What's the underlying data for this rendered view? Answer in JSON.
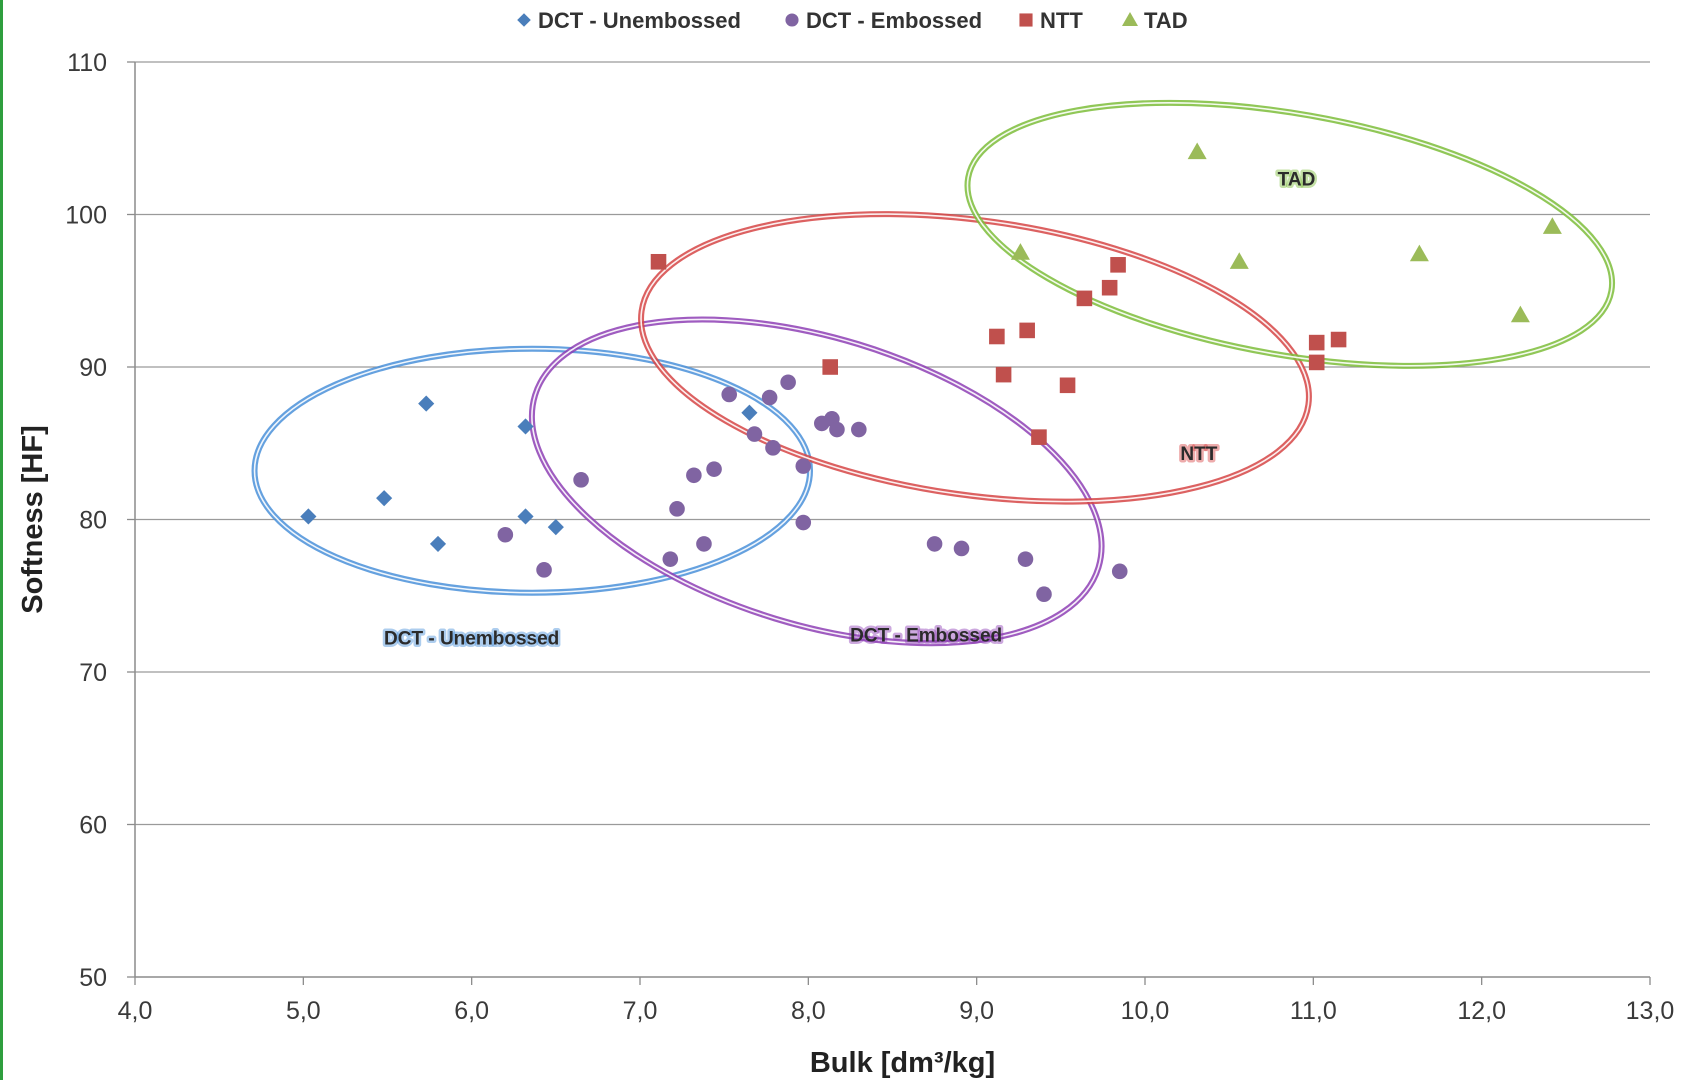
{
  "chart_data": {
    "type": "scatter",
    "xlabel": "Bulk [dm³/kg]",
    "ylabel": "Softness [HF]",
    "xlim": [
      4.0,
      13.0
    ],
    "ylim": [
      50,
      110
    ],
    "x_ticks": [
      "4,0",
      "5,0",
      "6,0",
      "7,0",
      "8,0",
      "9,0",
      "10,0",
      "11,0",
      "12,0",
      "13,0"
    ],
    "y_ticks": [
      "50",
      "60",
      "70",
      "80",
      "90",
      "100",
      "110"
    ],
    "x_tick_values": [
      4,
      5,
      6,
      7,
      8,
      9,
      10,
      11,
      12,
      13
    ],
    "y_tick_values": [
      50,
      60,
      70,
      80,
      90,
      100,
      110
    ],
    "grid": "horizontal",
    "legend_position": "top",
    "series": [
      {
        "name": "DCT - Unembossed",
        "marker": "diamond",
        "color": "#4a7ebb",
        "points": [
          [
            5.03,
            80.2
          ],
          [
            5.48,
            81.4
          ],
          [
            5.73,
            87.6
          ],
          [
            5.8,
            78.4
          ],
          [
            6.32,
            86.1
          ],
          [
            6.32,
            80.2
          ],
          [
            6.5,
            79.5
          ],
          [
            7.65,
            87.0
          ]
        ]
      },
      {
        "name": "DCT - Embossed",
        "marker": "circle",
        "color": "#8064a2",
        "points": [
          [
            6.2,
            79.0
          ],
          [
            6.43,
            76.7
          ],
          [
            6.65,
            82.6
          ],
          [
            7.18,
            77.4
          ],
          [
            7.22,
            80.7
          ],
          [
            7.32,
            82.9
          ],
          [
            7.38,
            78.4
          ],
          [
            7.44,
            83.3
          ],
          [
            7.53,
            88.2
          ],
          [
            7.68,
            85.6
          ],
          [
            7.77,
            88.0
          ],
          [
            7.79,
            84.7
          ],
          [
            7.88,
            89.0
          ],
          [
            7.97,
            83.5
          ],
          [
            7.97,
            79.8
          ],
          [
            8.08,
            86.3
          ],
          [
            8.14,
            86.6
          ],
          [
            8.17,
            85.9
          ],
          [
            8.3,
            85.9
          ],
          [
            8.75,
            78.4
          ],
          [
            8.91,
            78.1
          ],
          [
            9.29,
            77.4
          ],
          [
            9.4,
            75.1
          ],
          [
            9.85,
            76.6
          ]
        ]
      },
      {
        "name": "NTT",
        "marker": "square",
        "color": "#c0504d",
        "points": [
          [
            7.11,
            96.9
          ],
          [
            8.13,
            90.0
          ],
          [
            9.12,
            92.0
          ],
          [
            9.16,
            89.5
          ],
          [
            9.3,
            92.4
          ],
          [
            9.37,
            85.4
          ],
          [
            9.54,
            88.8
          ],
          [
            9.64,
            94.5
          ],
          [
            9.79,
            95.2
          ],
          [
            9.84,
            96.7
          ],
          [
            11.02,
            91.6
          ],
          [
            11.02,
            90.3
          ],
          [
            11.15,
            91.8
          ]
        ]
      },
      {
        "name": "TAD",
        "marker": "triangle",
        "color": "#9bbb59",
        "points": [
          [
            9.26,
            97.5
          ],
          [
            10.31,
            104.1
          ],
          [
            10.56,
            96.9
          ],
          [
            11.63,
            97.4
          ],
          [
            12.23,
            93.4
          ],
          [
            12.42,
            99.2
          ]
        ]
      }
    ],
    "annotations": [
      {
        "name": "DCT - Unembossed",
        "label": "DCT - Unembossed",
        "color": "#4a90d9",
        "label_x": 6.0,
        "label_y": 71.8,
        "ellipse": {
          "cx": 6.36,
          "cy": 83.2,
          "rx": 1.65,
          "ry": 8.0,
          "angle": 0
        }
      },
      {
        "name": "DCT - Embossed",
        "label": "DCT - Embossed",
        "color": "#8e3fb5",
        "label_x": 8.7,
        "label_y": 72.0,
        "ellipse": {
          "cx": 8.05,
          "cy": 82.5,
          "rx": 1.75,
          "ry": 9.4,
          "angle": 17
        }
      },
      {
        "name": "NTT",
        "label": "NTT",
        "color": "#d64545",
        "label_x": 10.32,
        "label_y": 83.9,
        "ellipse": {
          "cx": 8.99,
          "cy": 90.6,
          "rx": 2.0,
          "ry": 9.0,
          "angle": 8
        }
      },
      {
        "name": "TAD",
        "label": "TAD",
        "color": "#7cbd3a",
        "label_x": 10.9,
        "label_y": 101.9,
        "ellipse": {
          "cx": 10.86,
          "cy": 98.7,
          "rx": 1.94,
          "ry": 7.9,
          "angle": 10
        }
      }
    ]
  }
}
